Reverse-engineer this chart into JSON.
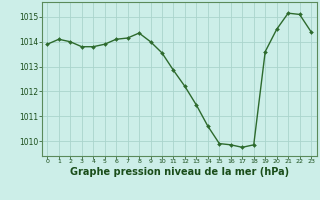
{
  "x": [
    0,
    1,
    2,
    3,
    4,
    5,
    6,
    7,
    8,
    9,
    10,
    11,
    12,
    13,
    14,
    15,
    16,
    17,
    18,
    19,
    20,
    21,
    22,
    23
  ],
  "y": [
    1013.9,
    1014.1,
    1014.0,
    1013.8,
    1013.8,
    1013.9,
    1014.1,
    1014.15,
    1014.35,
    1014.0,
    1013.55,
    1012.85,
    1012.2,
    1011.45,
    1010.6,
    1009.9,
    1009.85,
    1009.75,
    1009.85,
    1013.6,
    1014.5,
    1015.15,
    1015.1,
    1014.4
  ],
  "line_color": "#2d6a2d",
  "marker": "D",
  "marker_size": 2.0,
  "line_width": 1.0,
  "background_color": "#cceee8",
  "grid_color": "#aad4cc",
  "xlabel": "Graphe pression niveau de la mer (hPa)",
  "xlabel_fontsize": 7,
  "yticks": [
    1010,
    1011,
    1012,
    1013,
    1014,
    1015
  ],
  "xticks": [
    0,
    1,
    2,
    3,
    4,
    5,
    6,
    7,
    8,
    9,
    10,
    11,
    12,
    13,
    14,
    15,
    16,
    17,
    18,
    19,
    20,
    21,
    22,
    23
  ],
  "ylim": [
    1009.4,
    1015.6
  ],
  "xlim": [
    -0.5,
    23.5
  ],
  "tick_color": "#1a4d1a",
  "spine_color": "#5a8a5a"
}
